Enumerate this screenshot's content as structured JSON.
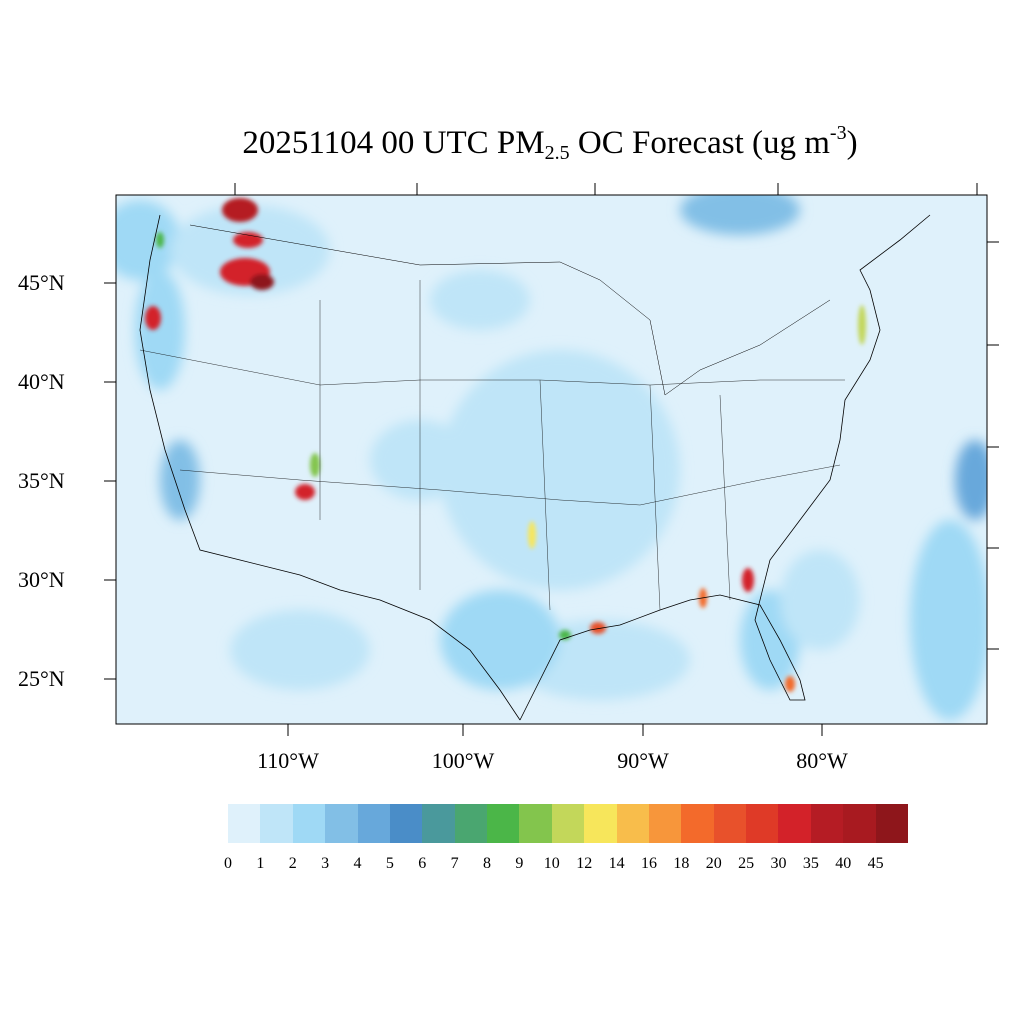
{
  "title": {
    "main": "20251104 00 UTC PM",
    "sub": "2.5",
    "mid": " OC Forecast (ug m",
    "sup": "-3",
    "end": ")"
  },
  "lat_labels": [
    "45°N",
    "40°N",
    "35°N",
    "30°N",
    "25°N"
  ],
  "lon_labels": [
    "110°W",
    "100°W",
    "90°W",
    "80°W"
  ],
  "colorbar": {
    "labels": [
      "0",
      "1",
      "2",
      "3",
      "4",
      "5",
      "6",
      "7",
      "8",
      "9",
      "10",
      "12",
      "14",
      "16",
      "18",
      "20",
      "25",
      "30",
      "35",
      "40",
      "45"
    ],
    "colors": [
      "#dff1fb",
      "#bfe5f8",
      "#9fd9f5",
      "#82bfe6",
      "#67a8db",
      "#4a8dc8",
      "#4a999c",
      "#4aa670",
      "#4bb648",
      "#83c54d",
      "#c3d75a",
      "#f7e65b",
      "#f8bd4b",
      "#f7963b",
      "#f36a2b",
      "#e8512b",
      "#df3a27",
      "#d32229",
      "#b51c24",
      "#a81a20",
      "#8e161b"
    ]
  }
}
